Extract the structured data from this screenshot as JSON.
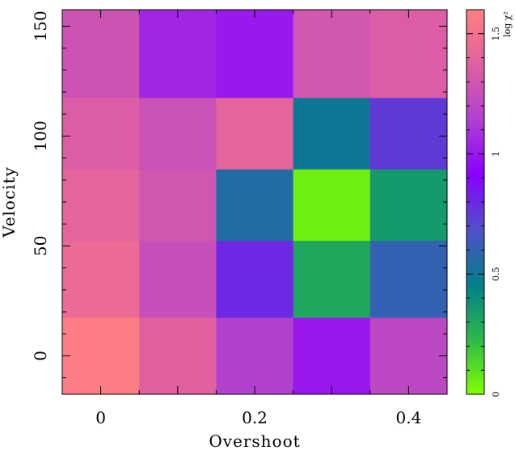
{
  "chart_data": {
    "type": "heatmap",
    "title": "",
    "xlabel": "Overshoot",
    "ylabel": "Velocity",
    "x_centers": [
      0,
      0.1,
      0.2,
      0.3,
      0.4
    ],
    "y_centers": [
      0,
      35,
      70,
      100,
      135
    ],
    "x_ticks": [
      {
        "value": 0,
        "label": "0"
      },
      {
        "value": 0.2,
        "label": "0.2"
      },
      {
        "value": 0.4,
        "label": "0.4"
      }
    ],
    "y_ticks": [
      {
        "value": 0,
        "label": "0"
      },
      {
        "value": 50,
        "label": "50"
      },
      {
        "value": 100,
        "label": "100"
      },
      {
        "value": 150,
        "label": "150"
      }
    ],
    "z_rows_bottom_to_top": [
      [
        1.58,
        1.38,
        1.15,
        1.0,
        1.2
      ],
      [
        1.45,
        1.25,
        0.8,
        0.3,
        0.6
      ],
      [
        1.4,
        1.3,
        0.55,
        0.05,
        0.35
      ],
      [
        1.35,
        1.27,
        1.4,
        0.5,
        0.75
      ],
      [
        1.28,
        1.05,
        1.0,
        1.3,
        1.35
      ]
    ],
    "colorbar": {
      "label": "log χ²",
      "range": [
        0,
        1.6
      ],
      "ticks": [
        {
          "value": 0,
          "label": "0"
        },
        {
          "value": 0.5,
          "label": "0.5"
        },
        {
          "value": 1,
          "label": "1"
        },
        {
          "value": 1.5,
          "label": "1.5"
        }
      ],
      "colors": [
        "#80ff00",
        "#2db84a",
        "#00808a",
        "#5050c8",
        "#8a00ff",
        "#b040d0",
        "#e060a0",
        "#ff8080"
      ]
    }
  }
}
